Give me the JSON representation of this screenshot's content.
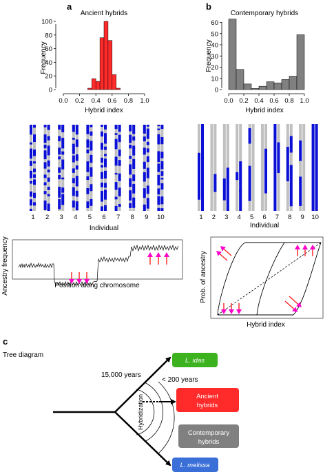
{
  "panel_labels": {
    "a": "a",
    "b": "b",
    "c": "c"
  },
  "colors": {
    "red": "#ff2a2a",
    "gray": "#808080",
    "blue": "#0a10d6",
    "light_gray": "#c0c0c0",
    "magenta": "#ff00cc",
    "arrow_red": "#ff2020",
    "green": "#3cb21e",
    "blue_box": "#3a6fd8"
  },
  "chart_data": [
    {
      "type": "bar",
      "title": "Ancient hybrids",
      "xlabel": "Hybrid index",
      "ylabel": "Frequency",
      "xlim": [
        0.0,
        1.0
      ],
      "ylim": [
        0,
        100
      ],
      "xticks": [
        "0.0",
        "0.2",
        "0.4",
        "0.6",
        "0.8",
        "1.0"
      ],
      "yticks": [
        "0",
        "20",
        "40",
        "60",
        "80",
        "100"
      ],
      "bin_width": 0.05,
      "bins": [
        {
          "x0": 0.3,
          "x1": 0.35,
          "value": 2
        },
        {
          "x0": 0.35,
          "x1": 0.4,
          "value": 16
        },
        {
          "x0": 0.4,
          "x1": 0.45,
          "value": 12
        },
        {
          "x0": 0.45,
          "x1": 0.5,
          "value": 76
        },
        {
          "x0": 0.5,
          "x1": 0.55,
          "value": 100
        },
        {
          "x0": 0.55,
          "x1": 0.6,
          "value": 72
        },
        {
          "x0": 0.6,
          "x1": 0.65,
          "value": 22
        },
        {
          "x0": 0.65,
          "x1": 0.7,
          "value": 2
        }
      ]
    },
    {
      "type": "bar",
      "title": "Contemporary hybrids",
      "xlabel": "Hybrid index",
      "ylabel": "Frequency",
      "xlim": [
        0.0,
        1.0
      ],
      "ylim": [
        0,
        60
      ],
      "xticks": [
        "0.0",
        "0.2",
        "0.4",
        "0.6",
        "0.8",
        "1.0"
      ],
      "yticks": [
        "0",
        "10",
        "20",
        "30",
        "40",
        "50",
        "60"
      ],
      "bin_width": 0.1,
      "bins": [
        {
          "x0": 0.0,
          "x1": 0.1,
          "value": 63
        },
        {
          "x0": 0.1,
          "x1": 0.2,
          "value": 18
        },
        {
          "x0": 0.2,
          "x1": 0.3,
          "value": 5
        },
        {
          "x0": 0.3,
          "x1": 0.4,
          "value": 1
        },
        {
          "x0": 0.4,
          "x1": 0.5,
          "value": 3
        },
        {
          "x0": 0.5,
          "x1": 0.6,
          "value": 7
        },
        {
          "x0": 0.6,
          "x1": 0.7,
          "value": 6
        },
        {
          "x0": 0.7,
          "x1": 0.8,
          "value": 9
        },
        {
          "x0": 0.8,
          "x1": 0.9,
          "value": 12
        },
        {
          "x0": 0.9,
          "x1": 1.0,
          "value": 49
        }
      ]
    }
  ],
  "individuals": {
    "xlabel": "Individual",
    "labels": [
      "1",
      "2",
      "3",
      "4",
      "5",
      "6",
      "7",
      "8",
      "9",
      "10"
    ]
  },
  "ancestry_line": {
    "ylabel": "Ancestry frequency",
    "xlabel": "Position along chromosome"
  },
  "cline": {
    "ylabel": "Prob. of ancestry",
    "xlabel": "Hybrid index"
  },
  "tree": {
    "title": "Tree diagram",
    "label_15000": "15,000 years",
    "label_200": "< 200 years",
    "hybridization": "Hybridization",
    "idas": "L. idas",
    "ancient_1": "Ancient",
    "ancient_2": "hybrids",
    "contemporary_1": "Contemporary",
    "contemporary_2": "hybrids",
    "melissa": "L. melissa"
  }
}
